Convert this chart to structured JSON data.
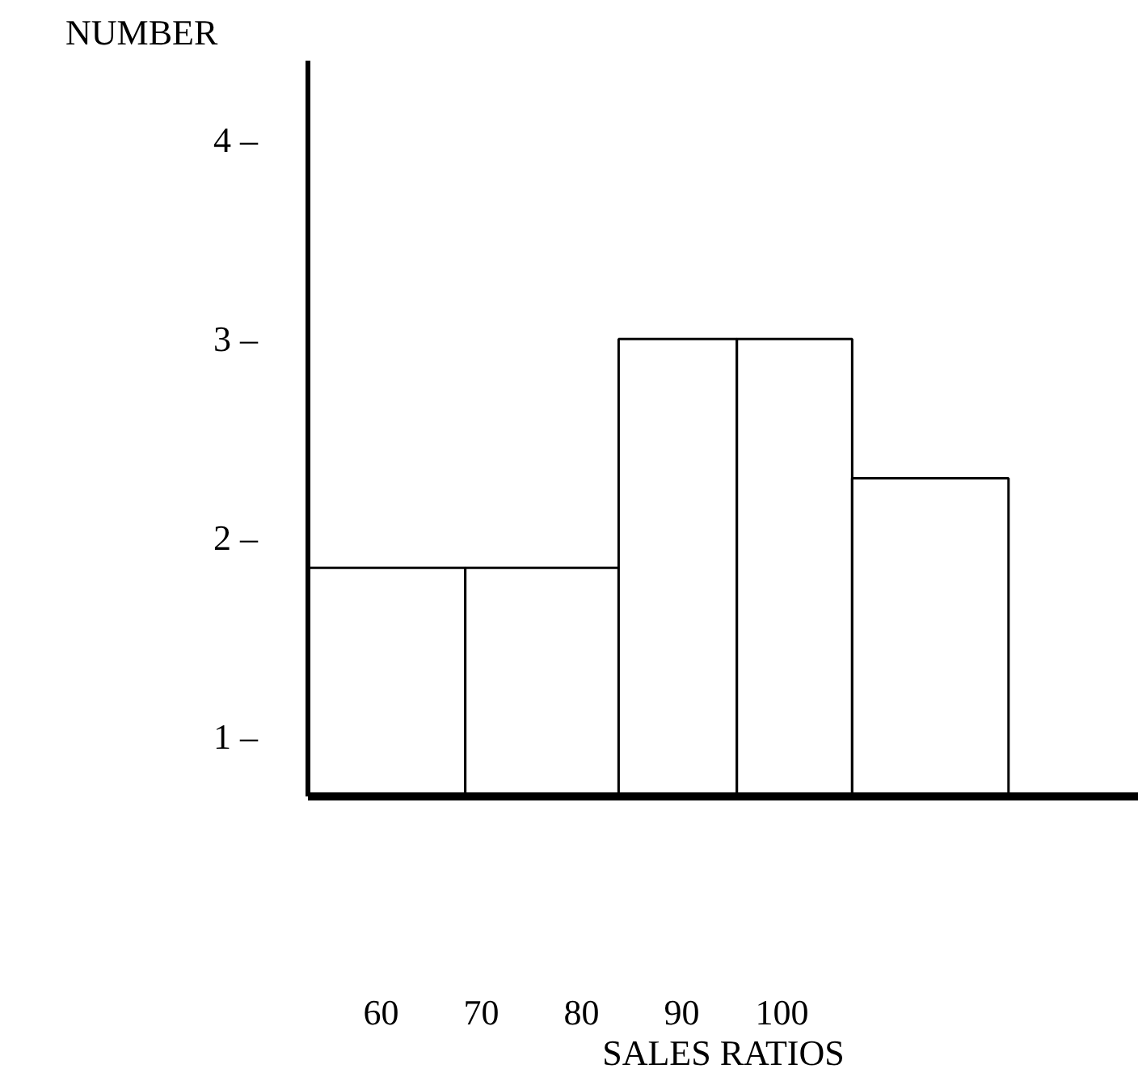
{
  "chart_data": {
    "type": "histogram",
    "xlabel": "SALES RATIOS",
    "ylabel": "NUMBER",
    "bins": [
      52.7,
      68.4,
      83.7,
      95.5,
      107,
      122.6
    ],
    "values": [
      1.85,
      1.85,
      3.0,
      3.0,
      2.3
    ],
    "color": "#ffffff",
    "xlim": [
      52.7,
      135.6
    ],
    "ylim": [
      0.7,
      4.4
    ],
    "xticks": [
      60,
      70,
      80,
      90,
      100
    ],
    "yticks": [
      {
        "value": 1,
        "label": "1 –"
      },
      {
        "value": 2,
        "label": "2 –"
      },
      {
        "value": 3,
        "label": "3 –"
      },
      {
        "value": 4,
        "label": "4 –"
      }
    ],
    "grid": false
  }
}
